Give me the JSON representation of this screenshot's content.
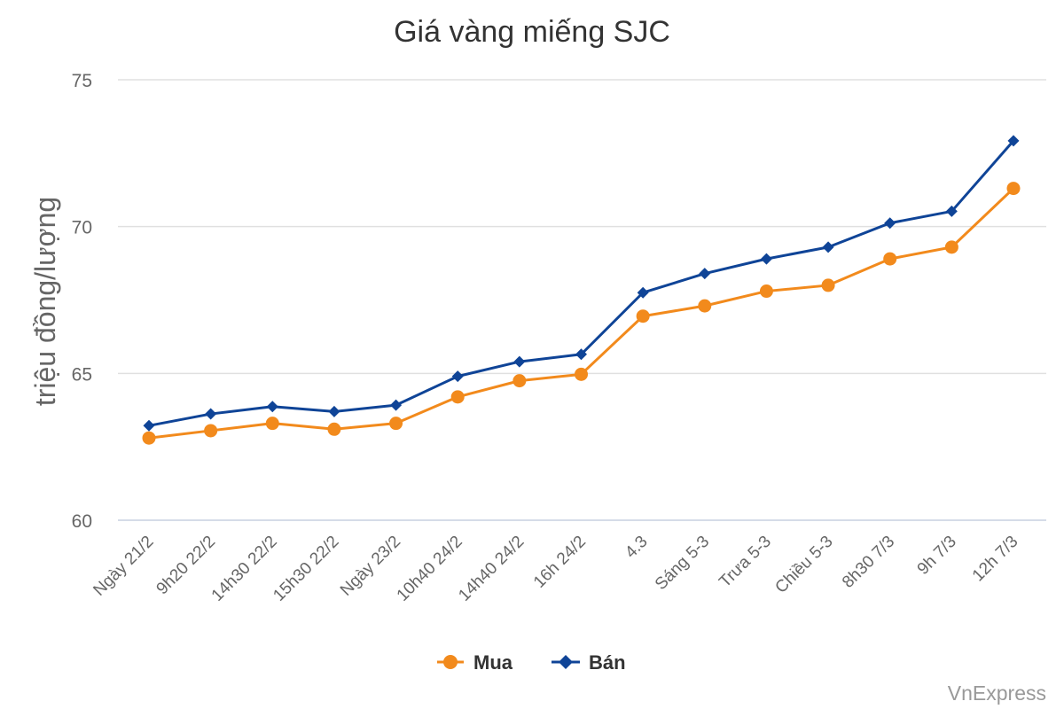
{
  "chart_data": {
    "type": "line",
    "title": "Giá vàng miếng SJC",
    "ylabel": "triệu đồng/lượng",
    "xlabel": "",
    "ylim": [
      60,
      75
    ],
    "yticks": [
      60,
      65,
      70,
      75
    ],
    "grid": true,
    "legend_position": "bottom",
    "categories": [
      "Ngày 21/2",
      "9h20 22/2",
      "14h30 22/2",
      "15h30 22/2",
      "Ngày 23/2",
      "10h40 24/2",
      "14h40 24/2",
      "16h 24/2",
      "4.3",
      "Sáng 5-3",
      "Trưa 5-3",
      "Chiều 5-3",
      "8h30 7/3",
      "9h 7/3",
      "12h 7/3"
    ],
    "series": [
      {
        "name": "Mua",
        "color": "#f28a1c",
        "marker": "circle",
        "values": [
          62.8,
          63.05,
          63.3,
          63.1,
          63.3,
          64.2,
          64.75,
          64.97,
          66.95,
          67.3,
          67.8,
          68.0,
          68.9,
          69.3,
          71.3
        ]
      },
      {
        "name": "Bán",
        "color": "#0f4497",
        "marker": "diamond",
        "values": [
          63.22,
          63.62,
          63.87,
          63.7,
          63.92,
          64.9,
          65.4,
          65.65,
          67.75,
          68.4,
          68.9,
          69.3,
          70.12,
          70.52,
          72.92
        ]
      }
    ]
  },
  "credit": "VnExpress"
}
